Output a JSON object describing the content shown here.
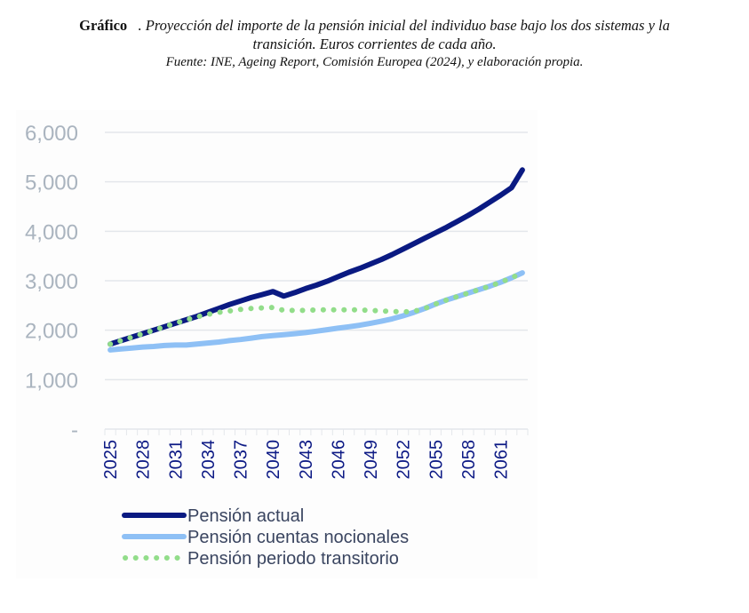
{
  "caption": {
    "label": "Gráfico",
    "title_line1": ". Proyección del importe de la pensión inicial del individuo base bajo los dos sistemas y la",
    "title_line2": "transición. Euros corrientes de cada año.",
    "source": "Fuente: INE, Ageing Report, Comisión Europea (2024), y elaboración propia."
  },
  "colors": {
    "actual": "#0a1a82",
    "nocional": "#8ec0f5",
    "transitorio": "#92dd8a",
    "grid": "#e4e7eb",
    "ytick": "#aab4bf",
    "xtick": "#0d1a85"
  },
  "chart_data": {
    "type": "line",
    "title": "Proyección del importe de la pensión inicial del individuo base bajo los dos sistemas y la transición. Euros corrientes de cada año.",
    "xlabel": "",
    "ylabel": "",
    "ylim": [
      0,
      6000
    ],
    "yticks": [
      0,
      1000,
      2000,
      3000,
      4000,
      5000,
      6000
    ],
    "ytick_labels": [
      "-",
      "1,000",
      "2,000",
      "3,000",
      "4,000",
      "5,000",
      "6,000"
    ],
    "x": [
      2025,
      2026,
      2027,
      2028,
      2029,
      2030,
      2031,
      2032,
      2033,
      2034,
      2035,
      2036,
      2037,
      2038,
      2039,
      2040,
      2041,
      2042,
      2043,
      2044,
      2045,
      2046,
      2047,
      2048,
      2049,
      2050,
      2051,
      2052,
      2053,
      2054,
      2055,
      2056,
      2057,
      2058,
      2059,
      2060,
      2061,
      2062,
      2063
    ],
    "xtick_labels": [
      "2025",
      "2028",
      "2031",
      "2034",
      "2037",
      "2040",
      "2043",
      "2046",
      "2049",
      "2052",
      "2055",
      "2058",
      "2061"
    ],
    "grid": true,
    "legend_position": "bottom-left",
    "series": [
      {
        "name": "Pensión actual",
        "style": "solid-thick",
        "values": [
          1720,
          1790,
          1860,
          1930,
          2000,
          2070,
          2140,
          2210,
          2280,
          2360,
          2440,
          2520,
          2590,
          2660,
          2720,
          2780,
          2690,
          2760,
          2840,
          2910,
          2990,
          3080,
          3170,
          3250,
          3340,
          3430,
          3530,
          3640,
          3750,
          3860,
          3970,
          4080,
          4200,
          4320,
          4450,
          4590,
          4730,
          4880,
          5240
        ]
      },
      {
        "name": "Pensión cuentas nocionales",
        "style": "solid-light",
        "values": [
          1600,
          1620,
          1640,
          1660,
          1670,
          1690,
          1700,
          1700,
          1720,
          1740,
          1760,
          1790,
          1810,
          1840,
          1870,
          1890,
          1910,
          1930,
          1950,
          1980,
          2010,
          2040,
          2070,
          2100,
          2140,
          2180,
          2230,
          2290,
          2360,
          2440,
          2530,
          2610,
          2680,
          2750,
          2820,
          2890,
          2970,
          3060,
          3160
        ]
      },
      {
        "name": "Pensión periodo transitorio",
        "style": "dotted",
        "values": [
          1720,
          1790,
          1860,
          1930,
          2000,
          2070,
          2140,
          2210,
          2270,
          2320,
          2360,
          2390,
          2420,
          2440,
          2450,
          2460,
          2400,
          2400,
          2400,
          2410,
          2410,
          2410,
          2410,
          2410,
          2400,
          2390,
          2380,
          2370,
          2380,
          2440,
          2530,
          2610,
          2680,
          2750,
          2820,
          2890,
          2970,
          3060,
          3160
        ]
      }
    ]
  }
}
